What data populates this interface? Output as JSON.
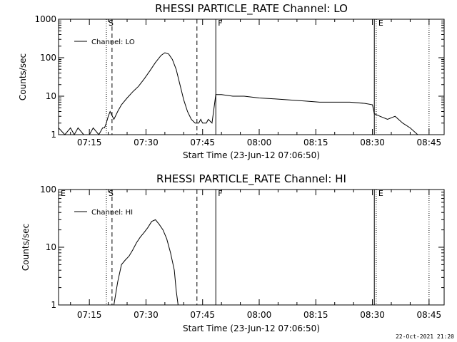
{
  "timestamp": "22-Oct-2021 21:20",
  "chart_data": [
    {
      "type": "line",
      "title": "RHESSI PARTICLE_RATE Channel: LO",
      "xlabel": "Start Time (23-Jun-12 07:06:50)",
      "ylabel": "Counts/sec",
      "yscale": "log",
      "ylim": [
        1,
        1000
      ],
      "yticks": [
        {
          "value": 1,
          "label": "1"
        },
        {
          "value": 10,
          "label": "10"
        },
        {
          "value": 100,
          "label": "100"
        },
        {
          "value": 1000,
          "label": "1000"
        }
      ],
      "xlim": [
        "07:06:50",
        "08:49:00"
      ],
      "xticks": [
        "07:15",
        "07:30",
        "07:45",
        "08:00",
        "08:15",
        "08:30",
        "08:45"
      ],
      "legend": {
        "position": "top-left",
        "entries": [
          "Channel: LO"
        ]
      },
      "flags": [
        {
          "label": "S",
          "time": "07:19:30",
          "style": "dotted"
        },
        {
          "label": "",
          "time": "07:21:00",
          "style": "dashed"
        },
        {
          "label": "",
          "time": "07:43:30",
          "style": "dashed"
        },
        {
          "label": "F",
          "time": "07:48:30",
          "style": "solid"
        },
        {
          "label": "E",
          "time": "08:31:00",
          "style": "dotted"
        },
        {
          "label": "",
          "time": "08:30:30",
          "style": "solid"
        },
        {
          "label": "",
          "time": "08:45:00",
          "style": "dotted"
        }
      ],
      "series": [
        {
          "name": "Channel: LO",
          "x": [
            "07:06:50",
            "07:08:30",
            "07:10:00",
            "07:11:00",
            "07:12:00",
            "07:13:30",
            "07:15:00",
            "07:16:00",
            "07:17:30",
            "07:18:30",
            "07:19:00",
            "07:19:30",
            "07:20:00",
            "07:20:30",
            "07:21:30",
            "07:22:30",
            "07:23:30",
            "07:25:00",
            "07:26:30",
            "07:28:00",
            "07:29:30",
            "07:31:00",
            "07:32:30",
            "07:34:00",
            "07:35:00",
            "07:36:00",
            "07:37:00",
            "07:38:00",
            "07:39:00",
            "07:40:00",
            "07:41:00",
            "07:42:00",
            "07:43:00",
            "07:44:00",
            "07:44:30",
            "07:45:00",
            "07:46:00",
            "07:46:30",
            "07:47:30",
            "07:48:30",
            "07:50:00",
            "07:53:00",
            "07:56:00",
            "08:00:00",
            "08:04:00",
            "08:08:00",
            "08:12:00",
            "08:16:00",
            "08:20:00",
            "08:24:00",
            "08:28:00",
            "08:30:00",
            "08:30:30",
            "08:32:00",
            "08:34:00",
            "08:36:00",
            "08:38:00",
            "08:40:00",
            "08:42:00",
            "08:44:00"
          ],
          "y": [
            1.5,
            1,
            1.5,
            1,
            1.5,
            1,
            1,
            1.5,
            1,
            1.5,
            1.5,
            2,
            3,
            4,
            2.5,
            4,
            6,
            9,
            13,
            18,
            28,
            45,
            75,
            115,
            135,
            125,
            90,
            50,
            20,
            8,
            4,
            2.5,
            2,
            2,
            2.5,
            2,
            2,
            2.5,
            2,
            11,
            11,
            10,
            10,
            9,
            8.5,
            8,
            7.5,
            7,
            7,
            7,
            6.5,
            6,
            3.5,
            3,
            2.5,
            3,
            2,
            1.5,
            1,
            1
          ]
        }
      ]
    },
    {
      "type": "line",
      "title": "RHESSI PARTICLE_RATE Channel: HI",
      "xlabel": "Start Time (23-Jun-12 07:06:50)",
      "ylabel": "Counts/sec",
      "yscale": "log",
      "ylim": [
        1,
        100
      ],
      "yticks": [
        {
          "value": 1,
          "label": "1"
        },
        {
          "value": 10,
          "label": "10"
        },
        {
          "value": 100,
          "label": "100"
        }
      ],
      "xlim": [
        "07:06:50",
        "08:49:00"
      ],
      "xticks": [
        "07:15",
        "07:30",
        "07:45",
        "08:00",
        "08:15",
        "08:30",
        "08:45"
      ],
      "legend": {
        "position": "top-left",
        "entries": [
          "Channel: HI"
        ]
      },
      "flags": [
        {
          "label": "E",
          "time": "07:06:50",
          "style": "none"
        },
        {
          "label": "S",
          "time": "07:19:30",
          "style": "dotted"
        },
        {
          "label": "",
          "time": "07:21:00",
          "style": "dashed"
        },
        {
          "label": "",
          "time": "07:43:30",
          "style": "dashed"
        },
        {
          "label": "F",
          "time": "07:48:30",
          "style": "solid"
        },
        {
          "label": "E",
          "time": "08:31:00",
          "style": "dotted"
        },
        {
          "label": "",
          "time": "08:30:30",
          "style": "solid"
        },
        {
          "label": "",
          "time": "08:45:00",
          "style": "dotted"
        }
      ],
      "series": [
        {
          "name": "Channel: HI",
          "x": [
            "07:21:30",
            "07:22:30",
            "07:23:30",
            "07:24:30",
            "07:25:30",
            "07:26:30",
            "07:27:30",
            "07:28:30",
            "07:29:30",
            "07:30:30",
            "07:31:30",
            "07:32:30",
            "07:33:30",
            "07:34:30",
            "07:35:30",
            "07:36:30",
            "07:37:30",
            "07:38:00",
            "07:38:30"
          ],
          "y": [
            1,
            2.5,
            5,
            6,
            7,
            9,
            12,
            15,
            18,
            22,
            28,
            30,
            25,
            20,
            14,
            8,
            4,
            1.8,
            1
          ]
        }
      ]
    }
  ]
}
